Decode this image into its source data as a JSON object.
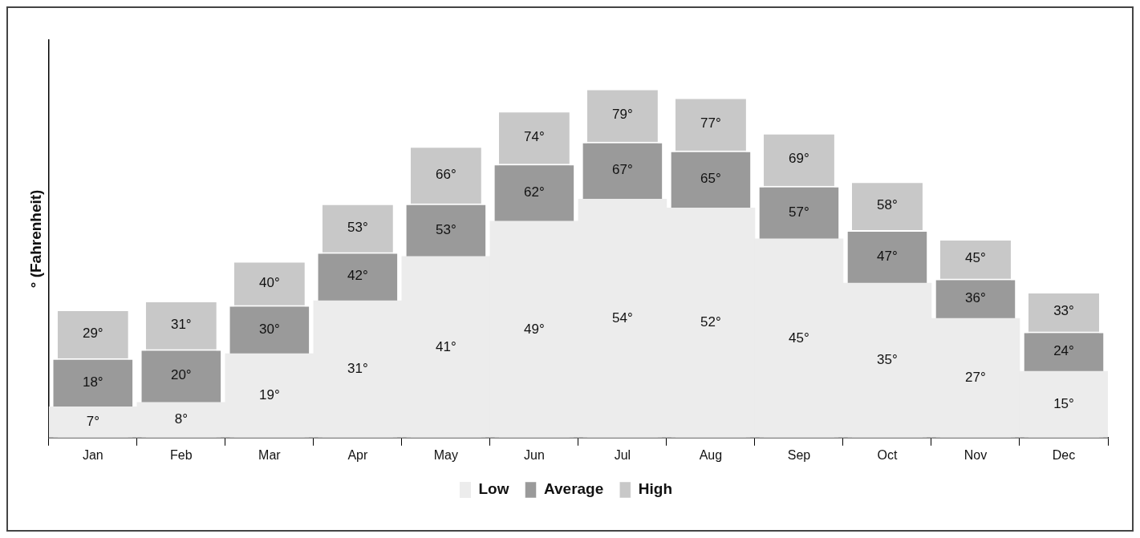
{
  "chart_data": {
    "type": "bar",
    "ylabel": "° (Fahrenheit)",
    "legend": "bottom",
    "grid": false,
    "categories": [
      "Jan",
      "Feb",
      "Mar",
      "Apr",
      "May",
      "Jun",
      "Jul",
      "Aug",
      "Sep",
      "Oct",
      "Nov",
      "Dec"
    ],
    "series": [
      {
        "name": "Low",
        "color": "#ececec",
        "values": [
          7,
          8,
          19,
          31,
          41,
          49,
          54,
          52,
          45,
          35,
          27,
          15
        ],
        "value_labels": [
          "7°",
          "8°",
          "19°",
          "31°",
          "41°",
          "49°",
          "54°",
          "52°",
          "45°",
          "35°",
          "27°",
          "15°"
        ]
      },
      {
        "name": "Average",
        "color": "#9a9a9a",
        "values": [
          18,
          20,
          30,
          42,
          53,
          62,
          67,
          65,
          57,
          47,
          36,
          24
        ],
        "value_labels": [
          "18°",
          "20°",
          "30°",
          "42°",
          "53°",
          "62°",
          "67°",
          "65°",
          "57°",
          "47°",
          "36°",
          "24°"
        ]
      },
      {
        "name": "High",
        "color": "#c8c8c8",
        "values": [
          29,
          31,
          40,
          53,
          66,
          74,
          79,
          77,
          69,
          58,
          45,
          33
        ],
        "value_labels": [
          "29°",
          "31°",
          "40°",
          "53°",
          "66°",
          "74°",
          "79°",
          "77°",
          "69°",
          "58°",
          "45°",
          "33°"
        ]
      }
    ]
  }
}
